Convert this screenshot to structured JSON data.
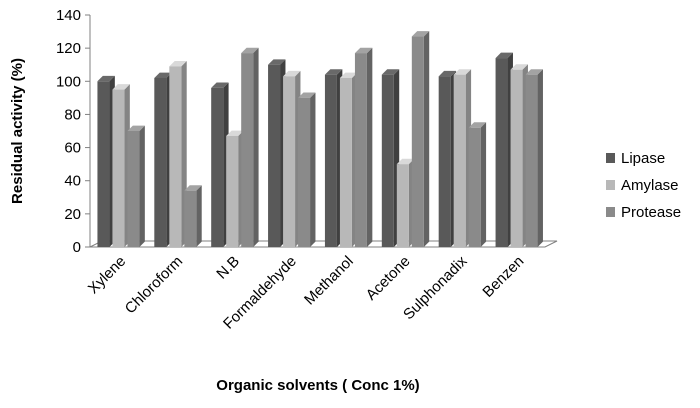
{
  "chart_data": {
    "type": "bar",
    "categories": [
      "Xylene",
      "Chloroform",
      "N.B",
      "Formaldehyde",
      "Methanol",
      "Acetone",
      "Sulphonadix",
      "Benzen"
    ],
    "series": [
      {
        "name": "Lipase",
        "color": "#595959",
        "values": [
          100,
          102,
          96,
          110,
          104,
          104,
          103,
          114
        ]
      },
      {
        "name": "Amylase",
        "color": "#b8b8b8",
        "values": [
          95,
          109,
          67,
          103,
          102,
          50,
          104,
          107
        ]
      },
      {
        "name": "Protease",
        "color": "#8a8a8a",
        "values": [
          70,
          34,
          117,
          90,
          117,
          127,
          72,
          104
        ]
      }
    ],
    "xlabel": "Organic solvents ( Conc 1%)",
    "ylabel": "Residual activity (%)",
    "ylim": [
      0,
      140
    ],
    "yticks": [
      0,
      20,
      40,
      60,
      80,
      100,
      120,
      140
    ],
    "grid": false,
    "legend_position": "right",
    "three_d": true
  }
}
